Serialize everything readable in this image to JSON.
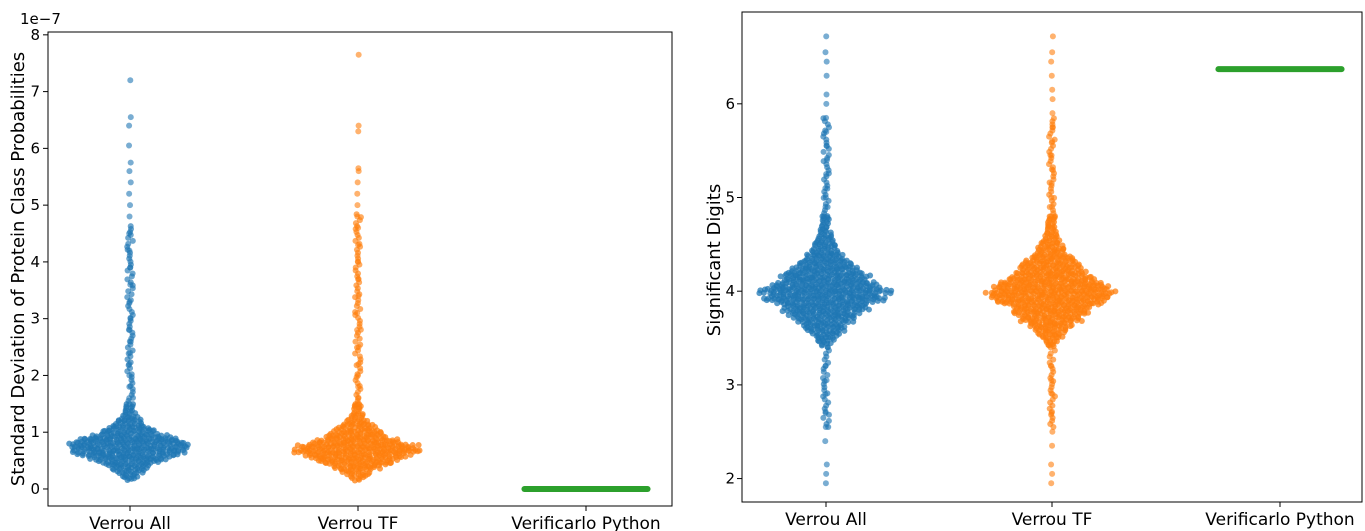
{
  "chart_data": [
    {
      "type": "scatter",
      "subtype": "swarm",
      "ylabel": "Standard Deviation of Protein Class Probabilities",
      "offset_text": "1e−7",
      "ylim": [
        -0.3,
        8.05
      ],
      "yticks": [
        0,
        1,
        2,
        3,
        4,
        5,
        6,
        7,
        8
      ],
      "ytick_labels": [
        "0",
        "1",
        "2",
        "3",
        "4",
        "5",
        "6",
        "7",
        "8"
      ],
      "categories": [
        "Verrou All",
        "Verrou TF",
        "Verificarlo Python"
      ],
      "series": [
        {
          "color": "#1f77b4",
          "bulk_center": 0.75,
          "bulk_low": 0.15,
          "bulk_high": 1.5,
          "bulk_max_halfwidth": 0.27,
          "tail_values": [
            1.6,
            1.8,
            2.0,
            2.2,
            2.4,
            2.6,
            2.8,
            3.0,
            3.3,
            3.6,
            3.9,
            4.2,
            4.5,
            4.8,
            5.0,
            5.2,
            5.4,
            5.6,
            5.75,
            6.05,
            6.4,
            6.55,
            7.2
          ]
        },
        {
          "color": "#ff7f0e",
          "bulk_center": 0.7,
          "bulk_low": 0.15,
          "bulk_high": 1.5,
          "bulk_max_halfwidth": 0.27,
          "tail_values": [
            1.6,
            1.8,
            2.0,
            2.2,
            2.5,
            2.8,
            3.1,
            3.4,
            3.7,
            4.0,
            4.3,
            4.6,
            4.8,
            5.0,
            5.2,
            5.4,
            5.6,
            5.65,
            6.3,
            6.4,
            7.65
          ]
        },
        {
          "color": "#2ca02c",
          "constant_value": 0.0,
          "halfwidth": 0.27
        }
      ]
    },
    {
      "type": "scatter",
      "subtype": "swarm",
      "ylabel": "Significant Digits",
      "ylim": [
        1.75,
        6.98
      ],
      "yticks": [
        2,
        3,
        4,
        5,
        6
      ],
      "ytick_labels": [
        "2",
        "3",
        "4",
        "5",
        "6"
      ],
      "categories": [
        "Verrou All",
        "Verrou TF",
        "Verificarlo Python"
      ],
      "series": [
        {
          "color": "#1f77b4",
          "bulk_center": 4.0,
          "bulk_low": 3.4,
          "bulk_high": 4.8,
          "bulk_max_halfwidth": 0.27,
          "tail_values": [
            1.95,
            2.05,
            2.15,
            2.4,
            2.55,
            2.7,
            2.9,
            3.05,
            3.2,
            4.9,
            5.0,
            5.1,
            5.25,
            5.4,
            5.55,
            5.7,
            5.85,
            6.0,
            6.1,
            6.3,
            6.45,
            6.55,
            6.72
          ]
        },
        {
          "color": "#ff7f0e",
          "bulk_center": 4.0,
          "bulk_low": 3.4,
          "bulk_high": 4.8,
          "bulk_max_halfwidth": 0.27,
          "tail_values": [
            1.95,
            2.05,
            2.15,
            2.35,
            2.5,
            2.7,
            2.9,
            3.05,
            3.2,
            4.9,
            5.0,
            5.15,
            5.3,
            5.45,
            5.6,
            5.75,
            5.9,
            6.05,
            6.15,
            6.3,
            6.45,
            6.55,
            6.72
          ]
        },
        {
          "color": "#2ca02c",
          "constant_value": 6.37,
          "halfwidth": 0.27
        }
      ]
    }
  ]
}
